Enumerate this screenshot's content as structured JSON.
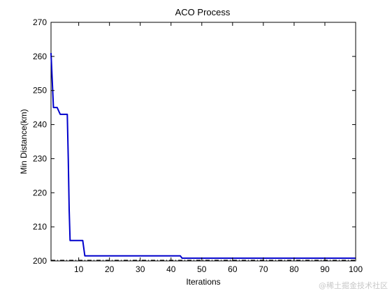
{
  "chart_data": {
    "type": "line",
    "title": "ACO Process",
    "xlabel": "Iterations",
    "ylabel": "Min Distance(km)",
    "xlim": [
      1,
      100
    ],
    "ylim": [
      200,
      270
    ],
    "xticks": [
      10,
      20,
      30,
      40,
      50,
      60,
      70,
      80,
      90,
      100
    ],
    "yticks": [
      200,
      210,
      220,
      230,
      240,
      250,
      260,
      270
    ],
    "grid": false,
    "series": [
      {
        "color": "#0000cc",
        "points": [
          [
            1,
            261
          ],
          [
            1.8,
            245
          ],
          [
            3,
            245
          ],
          [
            3.5,
            244
          ],
          [
            4,
            243
          ],
          [
            6.3,
            243
          ],
          [
            6.6,
            230
          ],
          [
            6.9,
            215
          ],
          [
            7.2,
            206
          ],
          [
            11.3,
            206
          ],
          [
            12,
            201.5
          ],
          [
            43,
            201.5
          ],
          [
            43.6,
            200.8
          ],
          [
            100,
            200.8
          ]
        ]
      },
      {
        "color": "#000000",
        "points": [
          [
            1,
            200.2
          ],
          [
            100,
            200.2
          ]
        ]
      }
    ]
  },
  "watermark": "@稀土掘金技术社区"
}
